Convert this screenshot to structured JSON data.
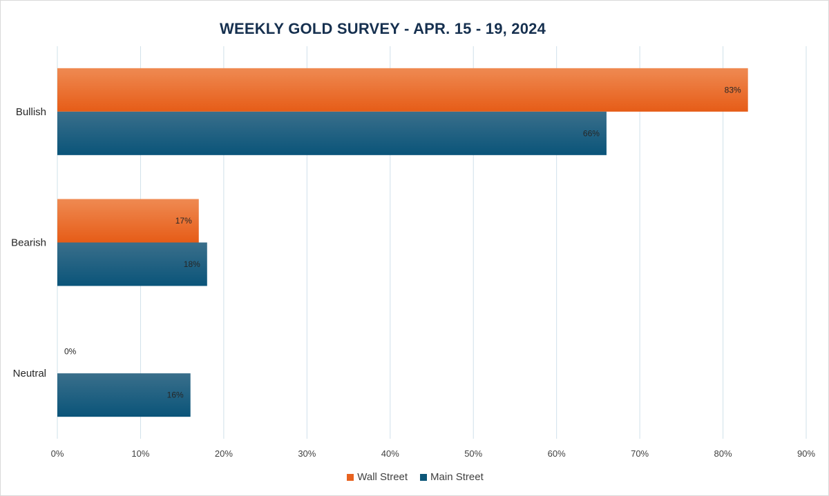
{
  "chart_data": {
    "type": "bar",
    "orientation": "horizontal",
    "title": "WEEKLY GOLD SURVEY - APR. 15 - 19, 2024",
    "categories": [
      "Bullish",
      "Bearish",
      "Neutral"
    ],
    "series": [
      {
        "name": "Wall Street",
        "values": [
          83,
          17,
          0
        ],
        "labels": [
          "83%",
          "17%",
          "0%"
        ],
        "color": "#e8621f",
        "color_light": "#ef8a52"
      },
      {
        "name": "Main Street",
        "values": [
          66,
          18,
          16
        ],
        "labels": [
          "66%",
          "18%",
          "16%"
        ],
        "color": "#0c5678",
        "color_light": "#3a6f8b"
      }
    ],
    "x_ticks": [
      "0%",
      "10%",
      "20%",
      "30%",
      "40%",
      "50%",
      "60%",
      "70%",
      "80%",
      "90%"
    ],
    "xlim": [
      0,
      90
    ],
    "grid": true,
    "legend_position": "bottom"
  }
}
